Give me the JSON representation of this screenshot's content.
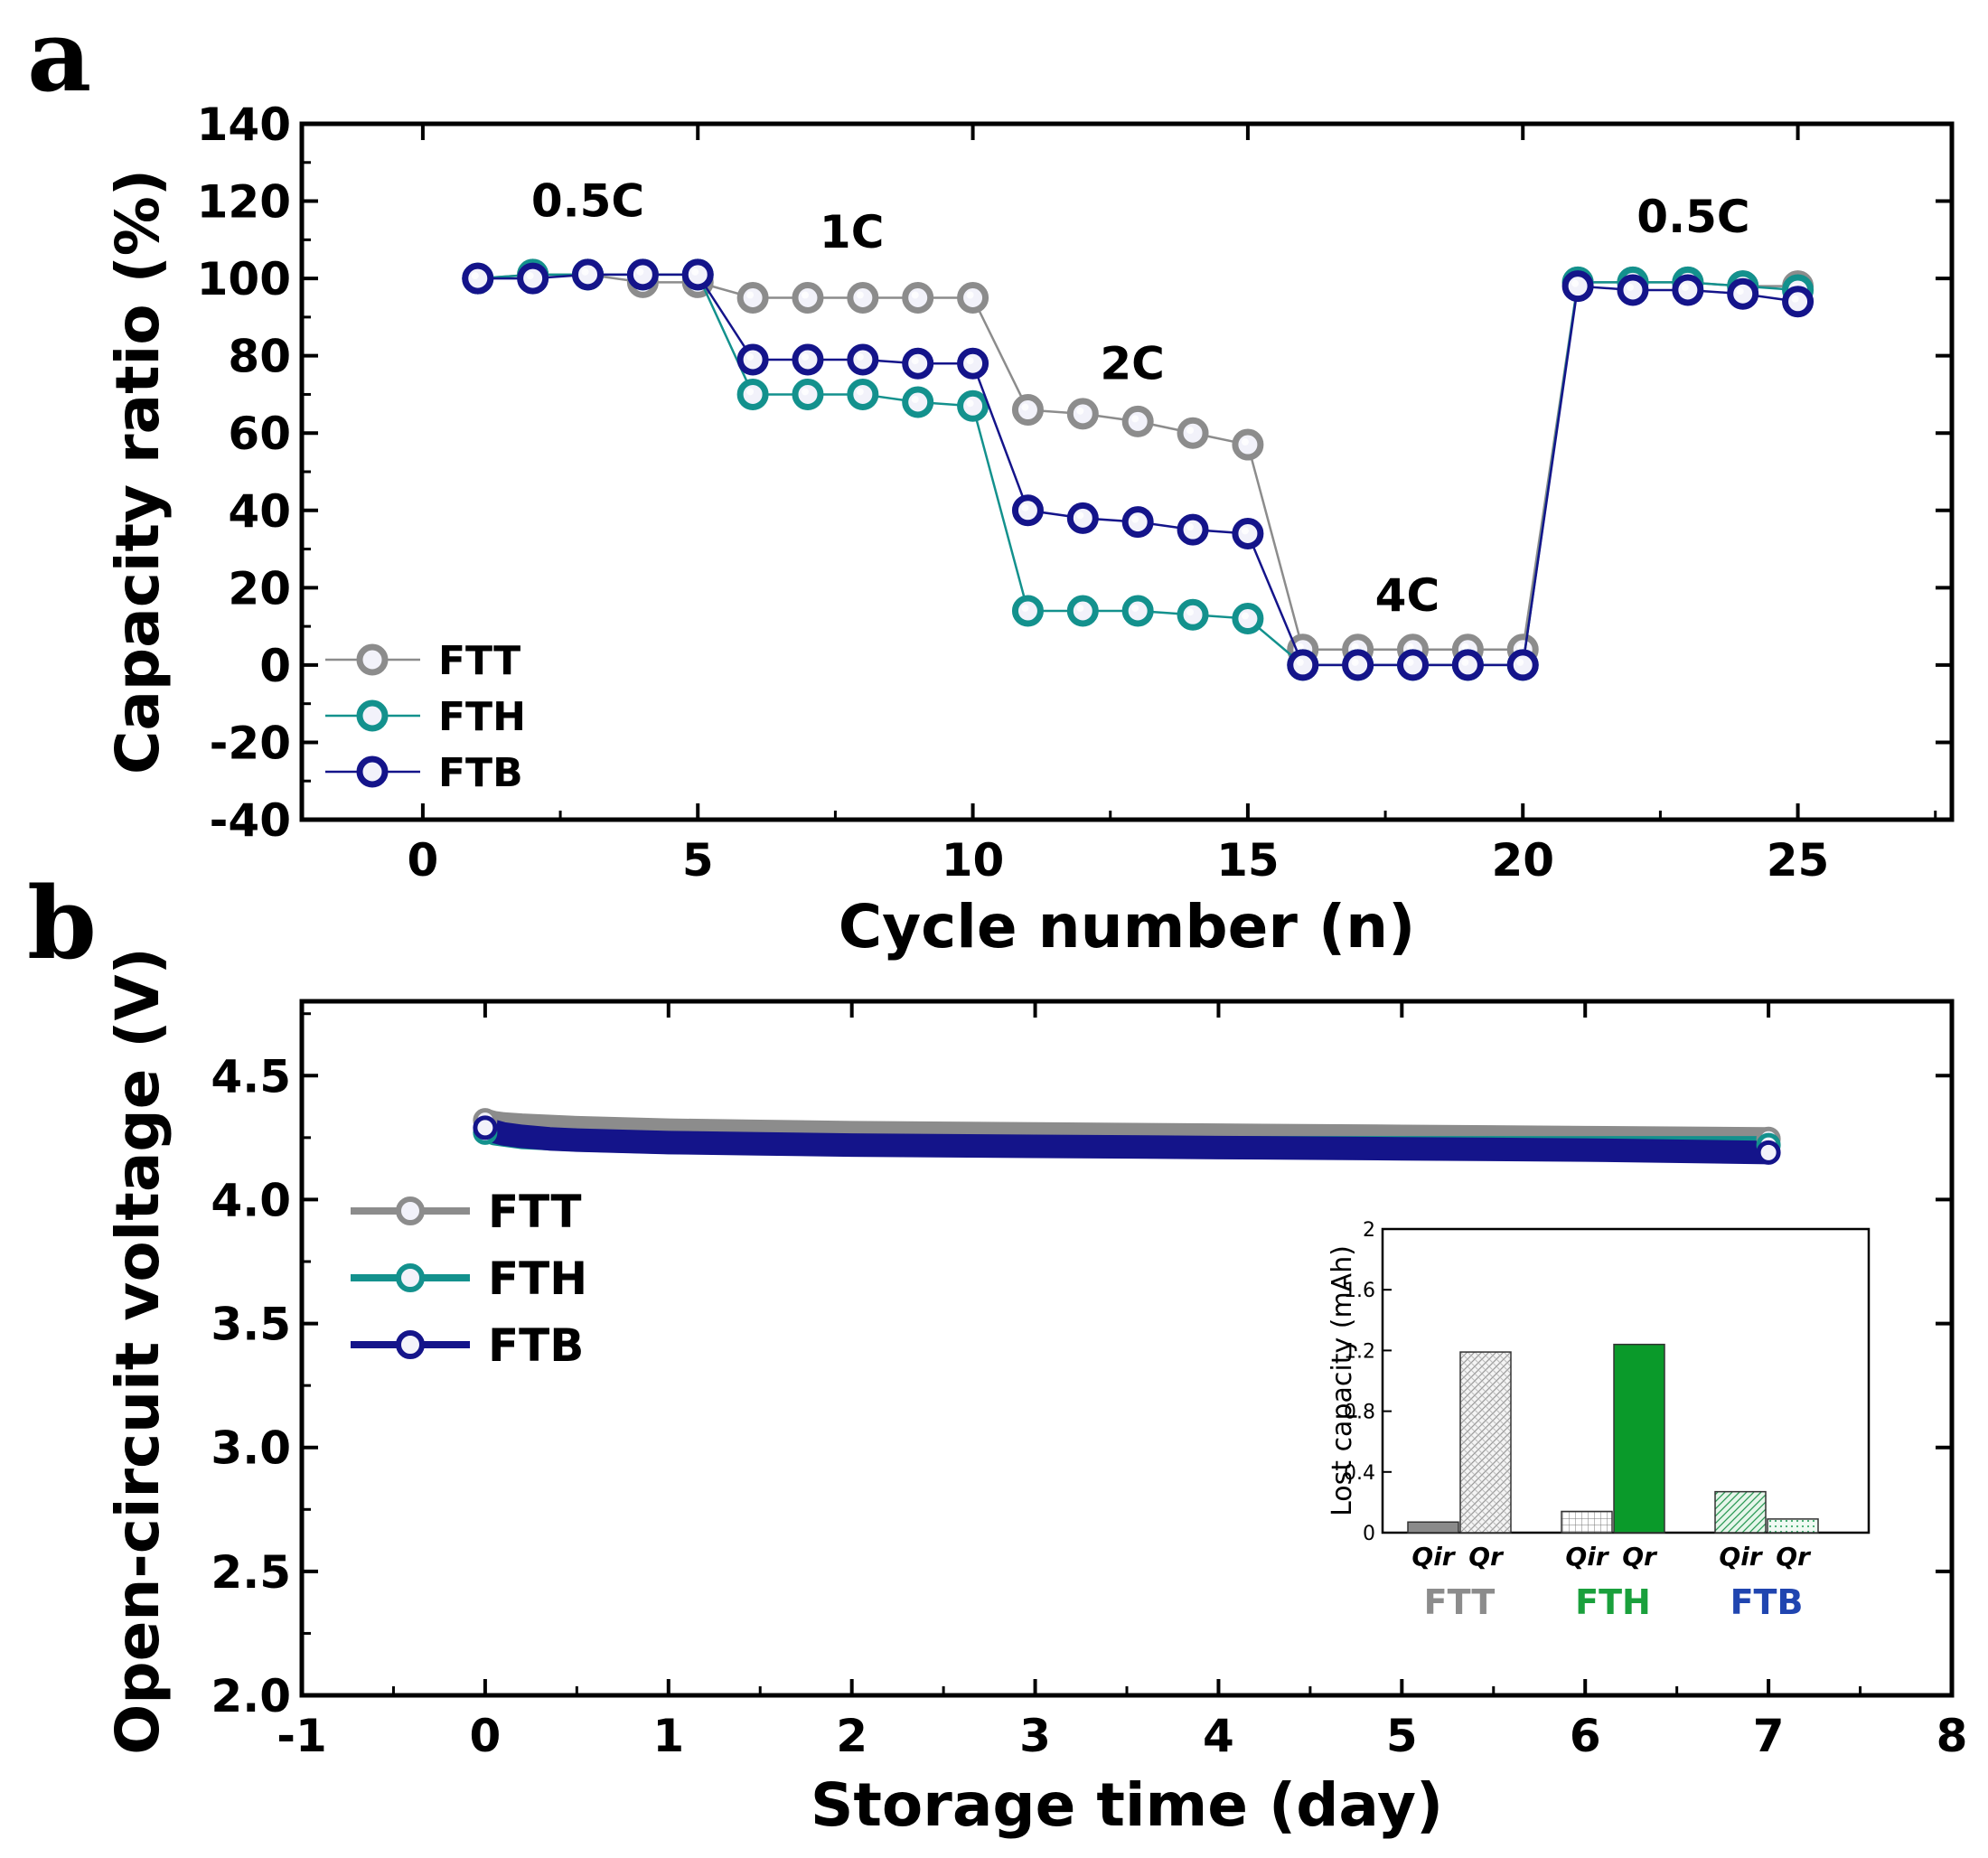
{
  "colors": {
    "FTT": "#8c8c8c",
    "FTH": "#13918d",
    "FTB": "#14148a",
    "FTH_label": "#1aa03c",
    "FTB_label": "#2045b0"
  },
  "panels": {
    "a": "a",
    "b": "b"
  },
  "chart_data": [
    {
      "type": "line",
      "panel": "a",
      "title": "",
      "xlabel": "Cycle number (n)",
      "ylabel": "Capacity ratio (%)",
      "xlim": [
        -2.2,
        27.8
      ],
      "ylim": [
        -40,
        140
      ],
      "xticks": [
        "0",
        "5",
        "10",
        "15",
        "20",
        "25"
      ],
      "yticks": [
        "-40",
        "-20",
        "0",
        "20",
        "40",
        "60",
        "80",
        "100",
        "120",
        "140"
      ],
      "x": [
        1,
        2,
        3,
        4,
        5,
        6,
        7,
        8,
        9,
        10,
        11,
        12,
        13,
        14,
        15,
        16,
        17,
        18,
        19,
        20,
        21,
        22,
        23,
        24,
        25
      ],
      "series": [
        {
          "name": "FTT",
          "values": [
            100,
            101,
            101,
            99,
            99,
            95,
            95,
            95,
            95,
            95,
            66,
            65,
            63,
            60,
            57,
            4,
            4,
            4,
            4,
            4,
            99,
            99,
            99,
            98,
            98
          ]
        },
        {
          "name": "FTH",
          "values": [
            100,
            101,
            101,
            101,
            101,
            70,
            70,
            70,
            68,
            67,
            14,
            14,
            14,
            13,
            12,
            0,
            0,
            0,
            0,
            0,
            99,
            99,
            99,
            98,
            97
          ]
        },
        {
          "name": "FTB",
          "values": [
            100,
            100,
            101,
            101,
            101,
            79,
            79,
            79,
            78,
            78,
            40,
            38,
            37,
            35,
            34,
            0,
            0,
            0,
            0,
            0,
            98,
            97,
            97,
            96,
            94
          ]
        }
      ],
      "annotations": [
        {
          "text": "0.5C",
          "x": 3,
          "y": 116
        },
        {
          "text": "1C",
          "x": 7.8,
          "y": 108
        },
        {
          "text": "2C",
          "x": 12.9,
          "y": 74
        },
        {
          "text": "4C",
          "x": 17.9,
          "y": 14
        },
        {
          "text": "0.5C",
          "x": 23.1,
          "y": 112
        }
      ],
      "legend": [
        "FTT",
        "FTH",
        "FTB"
      ],
      "legend_position": "lower-left"
    },
    {
      "type": "line",
      "panel": "b",
      "title": "",
      "xlabel": "Storage time (day)",
      "ylabel": "Open-circuit voltage (V)",
      "xlim": [
        -1,
        8
      ],
      "ylim": [
        2.0,
        4.8
      ],
      "xticks": [
        "-1",
        "0",
        "1",
        "2",
        "3",
        "4",
        "5",
        "6",
        "7",
        "8"
      ],
      "yticks": [
        "2.0",
        "2.5",
        "3.0",
        "3.5",
        "4.0",
        "4.5"
      ],
      "x": [
        0,
        0.05,
        0.1,
        0.2,
        0.35,
        0.5,
        0.75,
        1,
        1.5,
        2,
        3,
        4,
        5,
        6,
        7
      ],
      "series": [
        {
          "name": "FTT",
          "values": [
            4.32,
            4.31,
            4.305,
            4.3,
            4.295,
            4.29,
            4.285,
            4.28,
            4.275,
            4.27,
            4.265,
            4.26,
            4.255,
            4.25,
            4.245
          ]
        },
        {
          "name": "FTH",
          "values": [
            4.27,
            4.255,
            4.25,
            4.24,
            4.235,
            4.23,
            4.225,
            4.22,
            4.22,
            4.22,
            4.22,
            4.22,
            4.22,
            4.22,
            4.22
          ]
        },
        {
          "name": "FTB",
          "values": [
            4.29,
            4.275,
            4.265,
            4.255,
            4.245,
            4.24,
            4.235,
            4.23,
            4.225,
            4.22,
            4.215,
            4.21,
            4.205,
            4.2,
            4.19
          ]
        }
      ],
      "legend": [
        "FTT",
        "FTH",
        "FTB"
      ],
      "legend_position": "middle-left"
    },
    {
      "type": "bar",
      "panel": "b-inset",
      "title": "",
      "xlabel": "",
      "ylabel": "Lost capacity (mAh)",
      "ylim": [
        0,
        2
      ],
      "yticks": [
        "0",
        "0.4",
        "0.8",
        "1.2",
        "1.6",
        "2"
      ],
      "groups": [
        {
          "name": "FTT",
          "categories": [
            "Qir",
            "Qr"
          ],
          "values": [
            0.07,
            1.19
          ]
        },
        {
          "name": "FTH",
          "categories": [
            "Qir",
            "Qr"
          ],
          "values": [
            0.14,
            1.24
          ]
        },
        {
          "name": "FTB",
          "categories": [
            "Qir",
            "Qr"
          ],
          "values": [
            0.27,
            0.09
          ]
        }
      ]
    }
  ]
}
